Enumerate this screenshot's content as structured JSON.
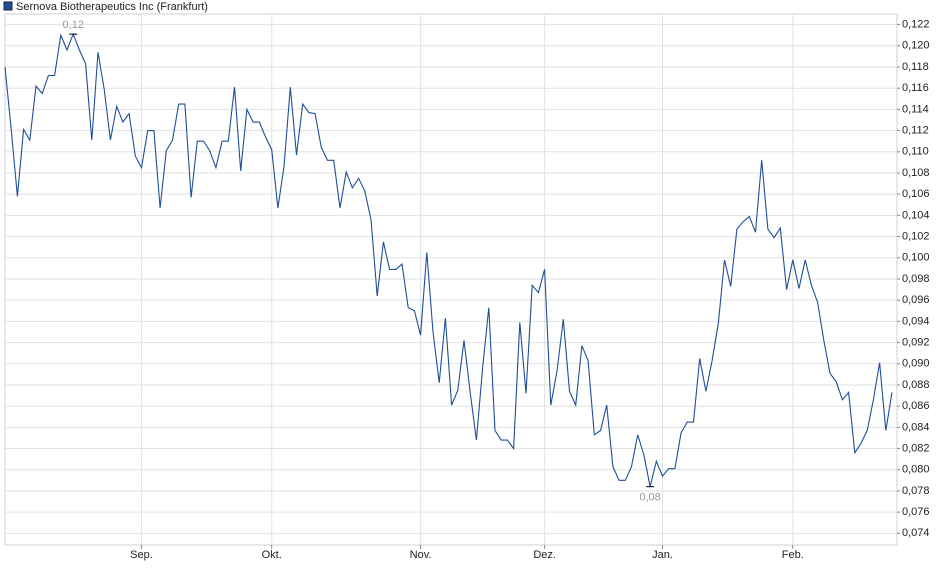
{
  "chart_data": {
    "type": "line",
    "series": [
      {
        "name": "Sernova Biotherapeutics Inc (Frankfurt)",
        "color": "#1f4e99",
        "values": [
          0.118,
          0.1121,
          0.1058,
          0.1121,
          0.1111,
          0.1162,
          0.1155,
          0.1172,
          0.1172,
          0.121,
          0.1196,
          0.1211,
          0.1196,
          0.1183,
          0.1111,
          0.1194,
          0.1159,
          0.1111,
          0.1143,
          0.1128,
          0.1136,
          0.1096,
          0.1085,
          0.112,
          0.112,
          0.1047,
          0.1101,
          0.1111,
          0.1145,
          0.1145,
          0.1057,
          0.111,
          0.111,
          0.1101,
          0.1085,
          0.111,
          0.111,
          0.1161,
          0.1082,
          0.114,
          0.1128,
          0.1128,
          0.1114,
          0.1102,
          0.1047,
          0.1087,
          0.1161,
          0.1097,
          0.1145,
          0.1137,
          0.1136,
          0.1104,
          0.1092,
          0.1092,
          0.1047,
          0.1081,
          0.1066,
          0.1075,
          0.1063,
          0.1036,
          0.0964,
          0.1015,
          0.0989,
          0.0989,
          0.0994,
          0.0953,
          0.095,
          0.0927,
          0.1005,
          0.093,
          0.0882,
          0.0943,
          0.0861,
          0.0875,
          0.0922,
          0.0873,
          0.0828,
          0.0896,
          0.0953,
          0.0837,
          0.0828,
          0.0828,
          0.082,
          0.0939,
          0.0872,
          0.0974,
          0.0967,
          0.0989,
          0.0861,
          0.0893,
          0.0942,
          0.0874,
          0.0861,
          0.0917,
          0.0903,
          0.0833,
          0.0837,
          0.0861,
          0.0803,
          0.079,
          0.079,
          0.0803,
          0.0833,
          0.0814,
          0.0784,
          0.0808,
          0.0794,
          0.0801,
          0.0801,
          0.0835,
          0.0845,
          0.0845,
          0.0905,
          0.0874,
          0.0903,
          0.0938,
          0.0998,
          0.0973,
          0.1027,
          0.1034,
          0.1039,
          0.1024,
          0.1092,
          0.1027,
          0.1019,
          0.1028,
          0.097,
          0.0998,
          0.0971,
          0.0998,
          0.0974,
          0.0958,
          0.0922,
          0.0891,
          0.0883,
          0.0866,
          0.0873,
          0.0816,
          0.0825,
          0.0837,
          0.0866,
          0.0901,
          0.0837,
          0.0873
        ]
      }
    ],
    "categories": [
      null,
      null,
      null,
      null,
      null,
      null,
      null,
      null,
      null,
      null,
      null,
      null,
      null,
      null,
      null,
      null,
      null,
      null,
      null,
      null,
      null,
      null,
      "Sep.",
      null,
      null,
      null,
      null,
      null,
      null,
      null,
      null,
      null,
      null,
      null,
      null,
      null,
      null,
      null,
      null,
      null,
      null,
      null,
      null,
      "Okt.",
      null,
      null,
      null,
      null,
      null,
      null,
      null,
      null,
      null,
      null,
      null,
      null,
      null,
      null,
      null,
      null,
      null,
      null,
      null,
      null,
      null,
      null,
      null,
      "Nov.",
      null,
      null,
      null,
      null,
      null,
      null,
      null,
      null,
      null,
      null,
      null,
      null,
      null,
      null,
      null,
      null,
      null,
      null,
      null,
      "Dez.",
      null,
      null,
      null,
      null,
      null,
      null,
      null,
      null,
      null,
      null,
      null,
      null,
      null,
      null,
      null,
      null,
      null,
      null,
      "Jan.",
      null,
      null,
      null,
      null,
      null,
      null,
      null,
      null,
      null,
      null,
      null,
      null,
      null,
      null,
      null,
      null,
      null,
      null,
      null,
      null,
      "Feb.",
      null,
      null,
      null,
      null,
      null,
      null,
      null,
      null,
      null,
      null,
      null,
      null,
      null,
      null,
      null,
      null
    ],
    "high_label": "0,12",
    "low_label": "0,08",
    "ylim": [
      0.0729,
      0.123
    ],
    "yticks": [
      {
        "value": 0.074,
        "label": "0,074"
      },
      {
        "value": 0.076,
        "label": "0,076"
      },
      {
        "value": 0.078,
        "label": "0,078"
      },
      {
        "value": 0.08,
        "label": "0,080"
      },
      {
        "value": 0.082,
        "label": "0,082"
      },
      {
        "value": 0.084,
        "label": "0,084"
      },
      {
        "value": 0.086,
        "label": "0,086"
      },
      {
        "value": 0.088,
        "label": "0,088"
      },
      {
        "value": 0.09,
        "label": "0,090"
      },
      {
        "value": 0.092,
        "label": "0,092"
      },
      {
        "value": 0.094,
        "label": "0,094"
      },
      {
        "value": 0.096,
        "label": "0,096"
      },
      {
        "value": 0.098,
        "label": "0,098"
      },
      {
        "value": 0.1,
        "label": "0,100"
      },
      {
        "value": 0.102,
        "label": "0,102"
      },
      {
        "value": 0.104,
        "label": "0,104"
      },
      {
        "value": 0.106,
        "label": "0,106"
      },
      {
        "value": 0.108,
        "label": "0,108"
      },
      {
        "value": 0.11,
        "label": "0,110"
      },
      {
        "value": 0.112,
        "label": "0,112"
      },
      {
        "value": 0.114,
        "label": "0,114"
      },
      {
        "value": 0.116,
        "label": "0,116"
      },
      {
        "value": 0.118,
        "label": "0,118"
      },
      {
        "value": 0.12,
        "label": "0,120"
      },
      {
        "value": 0.122,
        "label": "0,122"
      }
    ],
    "grid": true
  }
}
